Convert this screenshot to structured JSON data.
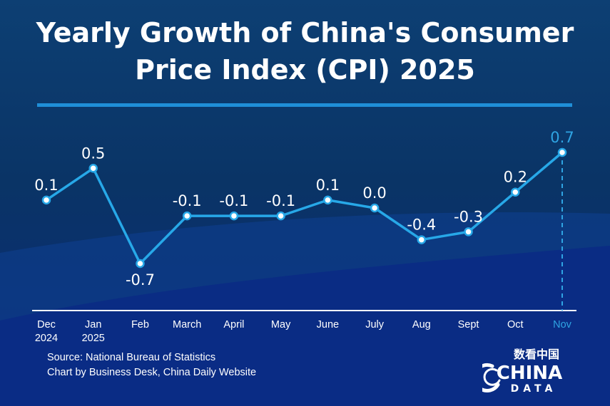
{
  "title_line1": "Yearly Growth of China's Consumer",
  "title_line2": "Price Index (CPI) 2025",
  "footer": {
    "source": "Source: National Bureau of Statistics",
    "credit": "Chart by Business Desk, China Daily Website"
  },
  "logo": {
    "top_text": "数看中国",
    "main_text": "CHINA",
    "sub_text": "DATA"
  },
  "colors": {
    "line": "#27a8e8",
    "labels": "#ffffff",
    "highlight": "#2fa4e3",
    "axis": "#ffffff"
  },
  "chart_data": {
    "type": "line",
    "title": "Yearly Growth of China's Consumer Price Index (CPI) 2025",
    "xlabel": "",
    "ylabel": "",
    "ylim": [
      -0.7,
      0.7
    ],
    "grid": false,
    "categories": [
      [
        "Dec",
        "2024"
      ],
      [
        "Jan",
        "2025"
      ],
      [
        "Feb"
      ],
      [
        "March"
      ],
      [
        "April"
      ],
      [
        "May"
      ],
      [
        "June"
      ],
      [
        "July"
      ],
      [
        "Aug"
      ],
      [
        "Sept"
      ],
      [
        "Oct"
      ],
      [
        "Nov"
      ]
    ],
    "values": [
      0.1,
      0.5,
      -0.7,
      -0.1,
      -0.1,
      -0.1,
      0.1,
      0.0,
      -0.4,
      -0.3,
      0.2,
      0.7
    ],
    "value_labels": [
      "0.1",
      "0.5",
      "-0.7",
      "-0.1",
      "-0.1",
      "-0.1",
      "0.1",
      "0.0",
      "-0.4",
      "-0.3",
      "0.2",
      "0.7"
    ],
    "highlight_index": 11
  }
}
